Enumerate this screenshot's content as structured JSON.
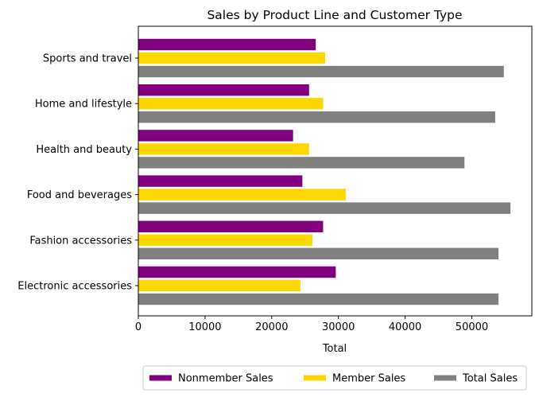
{
  "chart_data": {
    "type": "bar",
    "orientation": "horizontal",
    "title": "Sales by Product Line and Customer Type",
    "xlabel": "Total",
    "ylabel": "",
    "xlim": [
      0,
      59000
    ],
    "xticks": [
      "0",
      "10000",
      "20000",
      "30000",
      "40000",
      "50000"
    ],
    "grid": false,
    "legend_position": "bottom",
    "categories": [
      "Electronic accessories",
      "Fashion accessories",
      "Food and beverages",
      "Health and beauty",
      "Home and lifestyle",
      "Sports and travel"
    ],
    "series": [
      {
        "name": "Nonmember Sales",
        "color": "#800080",
        "values": [
          29600,
          27700,
          24600,
          23200,
          25600,
          26600
        ]
      },
      {
        "name": "Member Sales",
        "color": "#ffd700",
        "values": [
          24300,
          26100,
          31100,
          25600,
          27700,
          28000
        ]
      },
      {
        "name": "Total Sales",
        "color": "#808080",
        "values": [
          54000,
          54000,
          55800,
          48900,
          53500,
          54800
        ]
      }
    ]
  }
}
